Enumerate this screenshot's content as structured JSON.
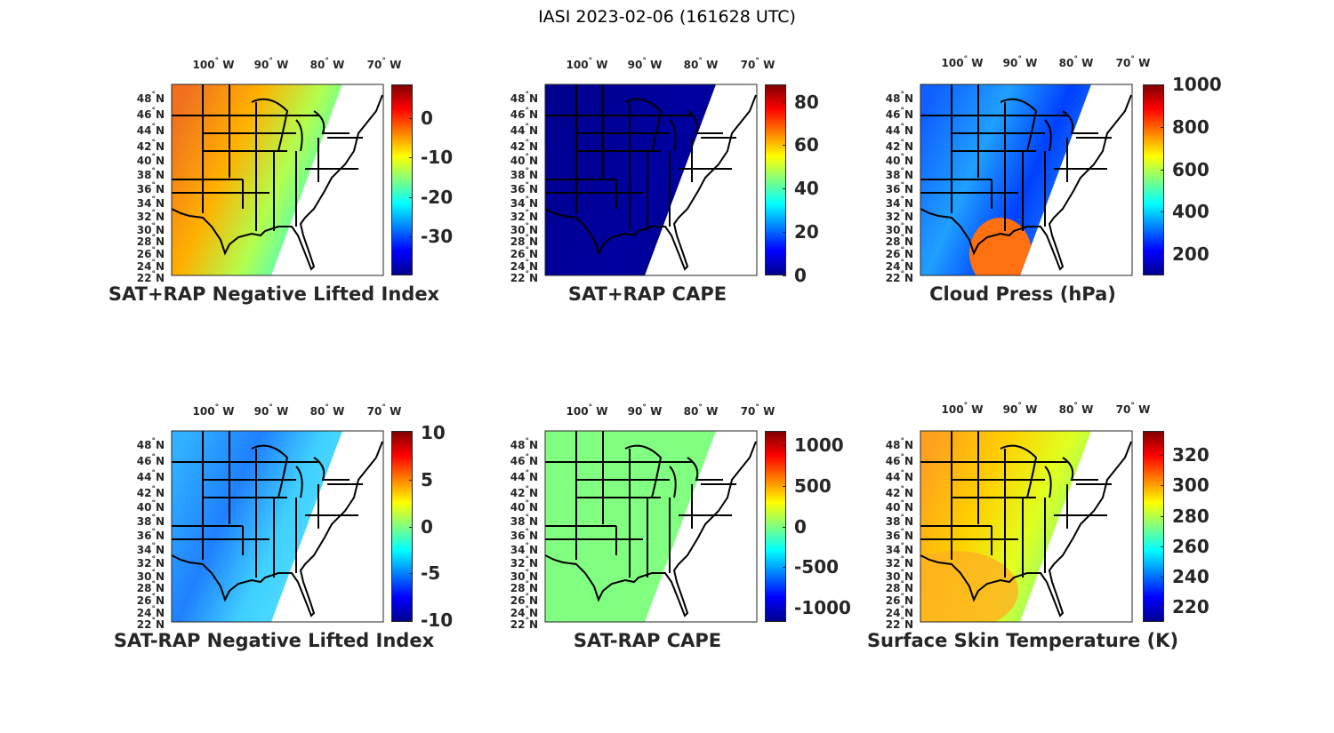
{
  "figure_title": "IASI 2023-02-06 (161628 UTC)",
  "lat_labels": [
    "48",
    "46",
    "44",
    "42",
    "40",
    "38",
    "36",
    "34",
    "32",
    "30",
    "28",
    "26",
    "24",
    "22"
  ],
  "lat_suffix": "N",
  "lon_labels": [
    "100",
    "90",
    "80",
    "70"
  ],
  "lon_suffix": "W",
  "degree_symbol": "°",
  "colormap": "jet",
  "panels": [
    {
      "title": "SAT+RAP Negative Lifted Index",
      "clim": [
        -40,
        8.6
      ],
      "ticks": [
        "0",
        "-10",
        "-20",
        "-30"
      ],
      "tick_values": [
        0,
        -10,
        -20,
        -30
      ],
      "field_colors": [
        "#f07020",
        "#ffb000",
        "#b0ff50",
        "#30ffe0",
        "#40c0ff"
      ]
    },
    {
      "title": "SAT+RAP CAPE",
      "clim": [
        0,
        88
      ],
      "ticks": [
        "80",
        "60",
        "40",
        "20",
        "0"
      ],
      "tick_values": [
        80,
        60,
        40,
        20,
        0
      ],
      "field_colors": [
        "#00008f",
        "#000098",
        "#0000a0",
        "#000090",
        "#00008f"
      ]
    },
    {
      "title": "Cloud Press (hPa)",
      "clim": [
        100,
        1000
      ],
      "ticks": [
        "1000",
        "800",
        "600",
        "400",
        "200"
      ],
      "tick_values": [
        1000,
        800,
        600,
        400,
        200
      ],
      "field_colors": [
        "#1060ff",
        "#20a0ff",
        "#0040ff",
        "#2080ff",
        "#ff7010"
      ]
    },
    {
      "title": "SAT-RAP Negative Lifted Index",
      "clim": [
        -10.2,
        10.2
      ],
      "ticks": [
        "10",
        "5",
        "0",
        "-5",
        "-10"
      ],
      "tick_values": [
        10,
        5,
        0,
        -5,
        -10
      ],
      "field_colors": [
        "#30b0ff",
        "#2080ff",
        "#40d0ff",
        "#50e0ff",
        "#d0ff40"
      ]
    },
    {
      "title": "SAT-RAP CAPE",
      "clim": [
        -1180,
        1180
      ],
      "ticks": [
        "1000",
        "500",
        "0",
        "-500",
        "-1000"
      ],
      "tick_values": [
        1000,
        500,
        0,
        -500,
        -1000
      ],
      "field_colors": [
        "#80ff80",
        "#80ff80",
        "#80ff80",
        "#80ff80",
        "#80ff80"
      ]
    },
    {
      "title": "Surface Skin Temperature (K)",
      "clim": [
        210,
        336
      ],
      "ticks": [
        "320",
        "300",
        "280",
        "260",
        "240",
        "220"
      ],
      "tick_values": [
        320,
        300,
        280,
        260,
        240,
        220
      ],
      "field_colors": [
        "#ffa020",
        "#ffd000",
        "#e0ff20",
        "#80ff80",
        "#30ffe0"
      ]
    }
  ]
}
